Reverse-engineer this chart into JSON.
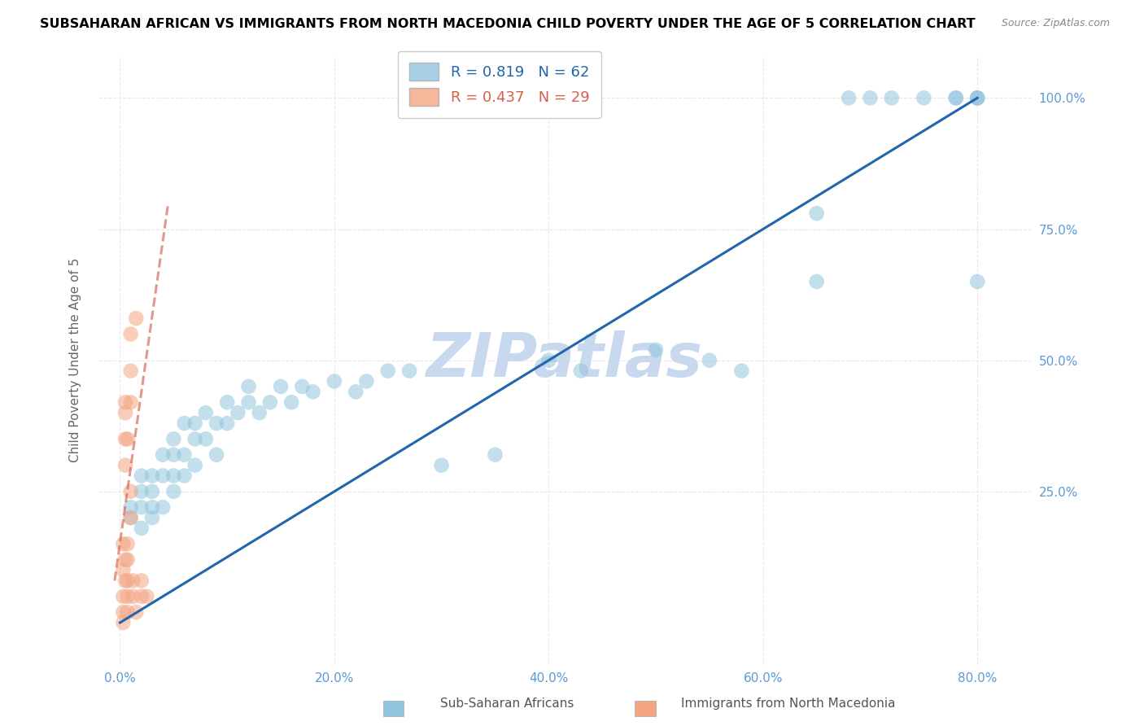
{
  "title": "SUBSAHARAN AFRICAN VS IMMIGRANTS FROM NORTH MACEDONIA CHILD POVERTY UNDER THE AGE OF 5 CORRELATION CHART",
  "source": "Source: ZipAtlas.com",
  "xlabel_vals": [
    0.0,
    20.0,
    40.0,
    60.0,
    80.0
  ],
  "ylabel_vals": [
    25.0,
    50.0,
    75.0,
    100.0
  ],
  "ylabel_label": "Child Poverty Under the Age of 5",
  "blue_R": 0.819,
  "blue_N": 62,
  "pink_R": 0.437,
  "pink_N": 29,
  "blue_color": "#92c5de",
  "blue_line_color": "#2166ac",
  "pink_color": "#f4a582",
  "pink_line_color": "#d6604d",
  "watermark": "ZIPatlas",
  "watermark_color": "#c8d8ee",
  "legend1_label": "Sub-Saharan Africans",
  "legend2_label": "Immigrants from North Macedonia",
  "blue_scatter_x": [
    1,
    1,
    2,
    2,
    2,
    2,
    3,
    3,
    3,
    3,
    4,
    4,
    4,
    5,
    5,
    5,
    5,
    6,
    6,
    6,
    7,
    7,
    7,
    8,
    8,
    9,
    9,
    10,
    10,
    11,
    12,
    12,
    13,
    14,
    15,
    16,
    17,
    18,
    20,
    22,
    23,
    25,
    27,
    30,
    35,
    40,
    43,
    50,
    55,
    58,
    65,
    65,
    68,
    70,
    72,
    75,
    78,
    78,
    80,
    80,
    80,
    80
  ],
  "blue_scatter_y": [
    20,
    22,
    18,
    22,
    25,
    28,
    20,
    22,
    25,
    28,
    22,
    28,
    32,
    25,
    28,
    32,
    35,
    28,
    32,
    38,
    30,
    35,
    38,
    35,
    40,
    32,
    38,
    38,
    42,
    40,
    42,
    45,
    40,
    42,
    45,
    42,
    45,
    44,
    46,
    44,
    46,
    48,
    48,
    30,
    32,
    50,
    48,
    52,
    50,
    48,
    65,
    78,
    100,
    100,
    100,
    100,
    100,
    100,
    65,
    100,
    100,
    100
  ],
  "pink_scatter_x": [
    0.3,
    0.3,
    0.3,
    0.3,
    0.3,
    0.5,
    0.5,
    0.5,
    0.5,
    0.5,
    0.5,
    0.7,
    0.7,
    0.7,
    0.7,
    0.7,
    0.7,
    1.0,
    1.0,
    1.0,
    1.0,
    1.0,
    1.2,
    1.2,
    1.5,
    1.5,
    2.0,
    2.0,
    2.5
  ],
  "pink_scatter_y": [
    0,
    2,
    5,
    10,
    15,
    8,
    12,
    30,
    35,
    40,
    42,
    2,
    5,
    8,
    12,
    15,
    35,
    20,
    25,
    42,
    48,
    55,
    5,
    8,
    2,
    58,
    5,
    8,
    5
  ],
  "blue_line_pts": [
    [
      0,
      0
    ],
    [
      80,
      100
    ]
  ],
  "pink_line_pts": [
    [
      -0.5,
      8
    ],
    [
      4.5,
      80
    ]
  ],
  "xlim": [
    -2,
    85
  ],
  "ylim": [
    -8,
    108
  ],
  "tick_color": "#5b9bd5",
  "grid_color": "#e8e8e8",
  "ylabel_color": "#666666",
  "title_fontsize": 11.5,
  "source_fontsize": 9,
  "tick_fontsize": 11,
  "ylabel_fontsize": 11,
  "legend_fontsize": 13
}
